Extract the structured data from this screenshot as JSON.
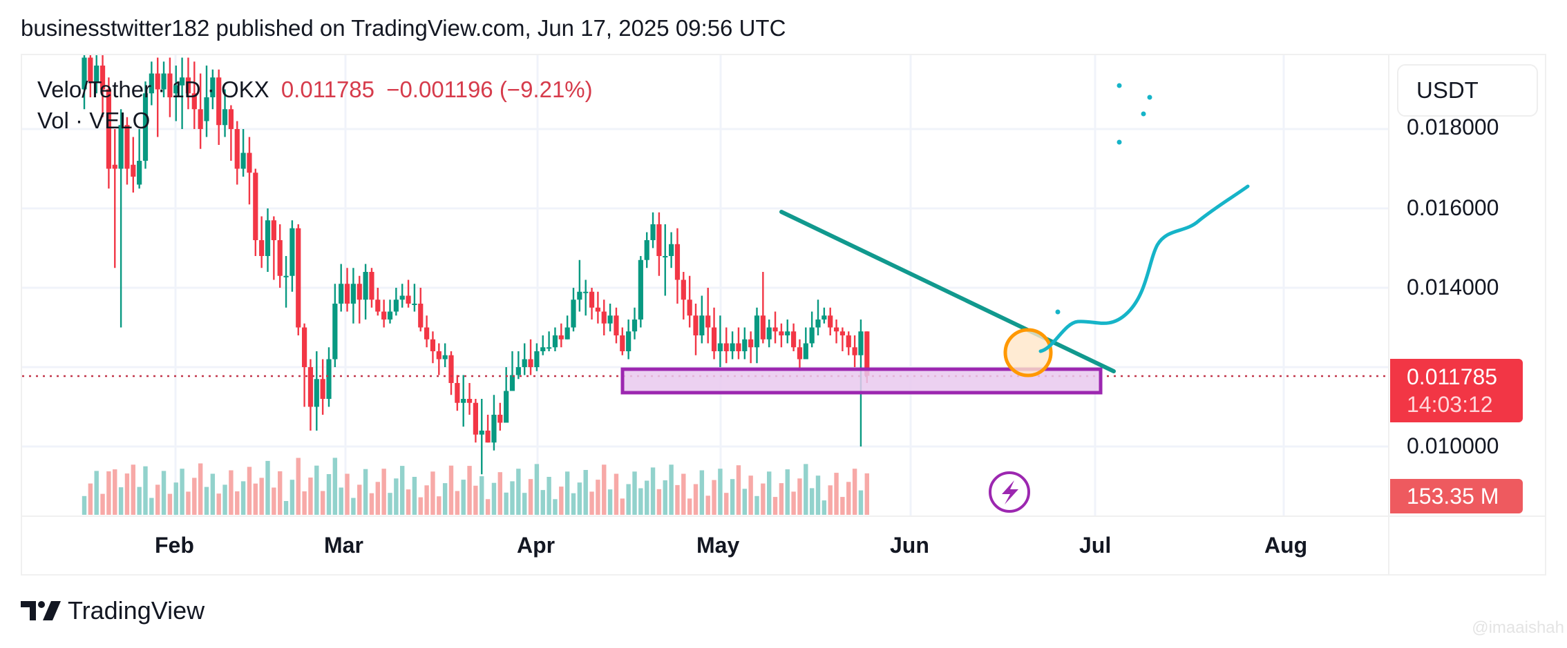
{
  "header": {
    "publish_line": "businesstwitter182 published on TradingView.com, Jun 17, 2025 09:56 UTC"
  },
  "legend": {
    "symbol": "Velo/Tether · 1D · OKX",
    "last_price": "0.011785",
    "change": "−0.001196 (−9.21%)",
    "volume_label": "Vol · VELO"
  },
  "price_axis": {
    "currency_button": "USDT",
    "ticks": [
      "0.018000",
      "0.016000",
      "0.014000",
      "0.010000"
    ],
    "current_price": "0.011785",
    "countdown": "14:03:12",
    "volume_value": "153.35 M"
  },
  "time_axis": {
    "months": [
      "Feb",
      "Mar",
      "Apr",
      "May",
      "Jun",
      "Jul",
      "Aug"
    ]
  },
  "footer": {
    "brand": "TradingView",
    "watermark": "@imaaishah"
  },
  "colors": {
    "up": "#089981",
    "down": "#f23645",
    "vol_up": "#92d2cc",
    "vol_down": "#f7a9a7",
    "trendline": "#11998e",
    "zone_border": "#9c27b0",
    "zone_fill": "#e9c9ef",
    "circle": "#ff9800",
    "circle_fill": "#ffe6c8",
    "projection": "#16b4c8",
    "grid": "#f0f3fa",
    "price_line": "#c2364a"
  },
  "chart_data": {
    "type": "candlestick",
    "title": "Velo/Tether · 1D · OKX",
    "interval": "1D",
    "exchange": "OKX",
    "ylabel": "USDT",
    "yticks": [
      0.01,
      0.014,
      0.016,
      0.018
    ],
    "ylim": [
      0.0088,
      0.019
    ],
    "xticks": [
      "Feb",
      "Mar",
      "Apr",
      "May",
      "Jun",
      "Jul",
      "Aug"
    ],
    "last": {
      "close": 0.011785,
      "change": -0.001196,
      "change_pct": -9.21,
      "volume": "153.35M",
      "countdown": "14:03:12"
    },
    "approx_closes_by_period": [
      {
        "period": "late Jan",
        "range": [
          0.0165,
          0.0195
        ]
      },
      {
        "period": "early Feb",
        "range": [
          0.013,
          0.019
        ]
      },
      {
        "period": "late Feb",
        "range": [
          0.015,
          0.0185
        ]
      },
      {
        "period": "early Mar",
        "range": [
          0.0105,
          0.0155
        ]
      },
      {
        "period": "mid Mar",
        "range": [
          0.013,
          0.0145
        ]
      },
      {
        "period": "early Apr",
        "range": [
          0.0095,
          0.012
        ]
      },
      {
        "period": "late Apr",
        "range": [
          0.0125,
          0.0145
        ]
      },
      {
        "period": "early May",
        "range": [
          0.0123,
          0.0159
        ]
      },
      {
        "period": "late May",
        "range": [
          0.012,
          0.0145
        ]
      },
      {
        "period": "Jun",
        "range": [
          0.01,
          0.0138
        ]
      }
    ],
    "annotations": [
      {
        "type": "descending_trendline",
        "from": {
          "date": "May 10",
          "price": 0.0159
        },
        "to": {
          "date": "Jul 1",
          "price": 0.012
        }
      },
      {
        "type": "support_zone",
        "from_date": "Apr 16",
        "to_date": "Jul 1",
        "top": 0.012,
        "bottom": 0.0116
      },
      {
        "type": "circle_highlight",
        "date": "Jun 20",
        "price": 0.0123
      },
      {
        "type": "projection_path",
        "from": {
          "date": "Jun 22",
          "price": 0.0123
        },
        "to": {
          "date": "Jul 27",
          "price": 0.0165
        }
      },
      {
        "type": "dot_marks",
        "count": 5
      }
    ]
  }
}
